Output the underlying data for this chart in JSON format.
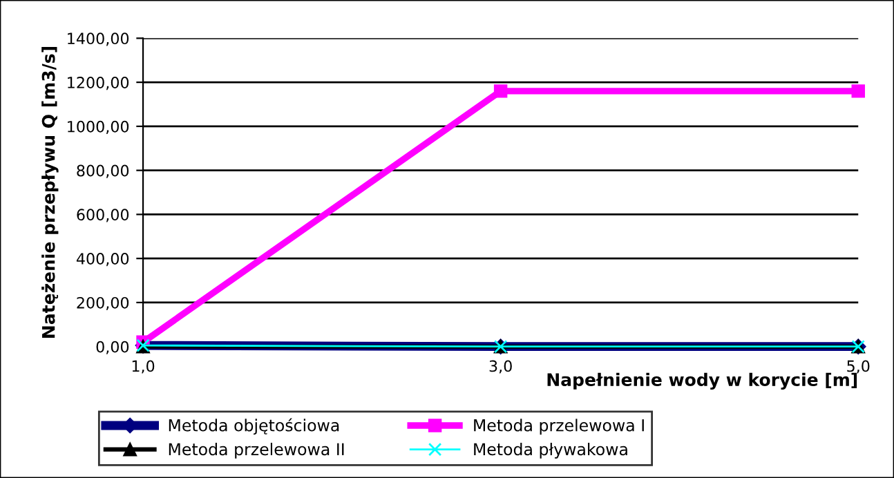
{
  "chart_data": {
    "type": "line",
    "xlabel": "Napełnienie wody w korycie [m]",
    "ylabel": "Natężenie przepływu Q [m3/s]",
    "categories": [
      "1,0",
      "3,0",
      "5,0"
    ],
    "series": [
      {
        "name": "Metoda objętościowa",
        "color": "#000080",
        "marker": "diamond",
        "values": [
          5,
          0,
          0
        ]
      },
      {
        "name": "Metoda przelewowa I",
        "color": "#ff00ff",
        "marker": "square",
        "values": [
          20,
          1160,
          1160
        ]
      },
      {
        "name": "Metoda przelewowa II",
        "color": "#000000",
        "marker": "triangle",
        "values": [
          0,
          0,
          0
        ]
      },
      {
        "name": "Metoda pływakowa",
        "color": "#00ffff",
        "marker": "cross",
        "values": [
          5,
          0,
          0
        ]
      }
    ],
    "ylim": [
      0,
      1400
    ],
    "yticks": [
      {
        "value": 0,
        "label": "0,00"
      },
      {
        "value": 200,
        "label": "200,00"
      },
      {
        "value": 400,
        "label": "400,00"
      },
      {
        "value": 600,
        "label": "600,00"
      },
      {
        "value": 800,
        "label": "800,00"
      },
      {
        "value": 1000,
        "label": "1000,00"
      },
      {
        "value": 1200,
        "label": "1200,00"
      },
      {
        "value": 1400,
        "label": "1400,00"
      }
    ],
    "grid": "y",
    "legend": "bottom"
  }
}
